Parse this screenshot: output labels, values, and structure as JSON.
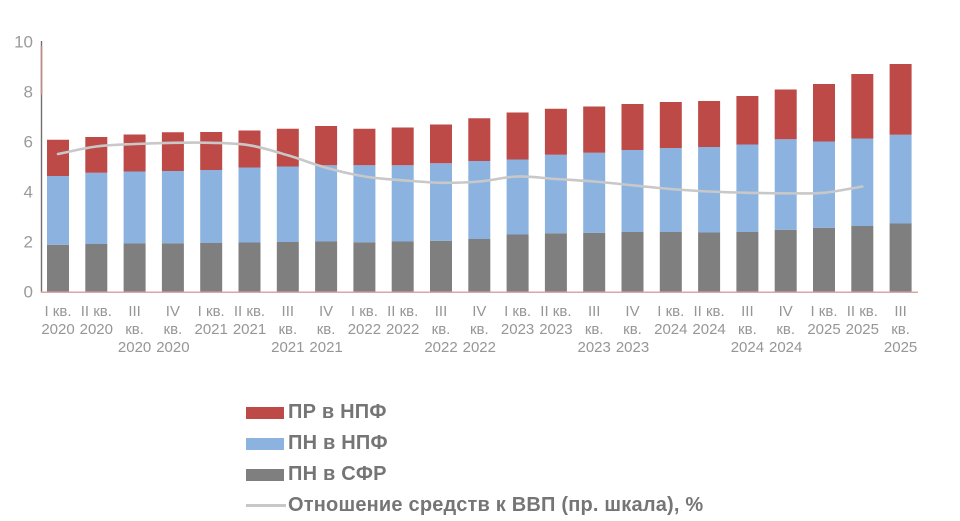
{
  "chart_data": {
    "type": "bar",
    "subtype": "stacked-bars-with-line",
    "title": "",
    "categories": [
      "I кв. 2020",
      "II кв. 2020",
      "III кв. 2020",
      "IV кв. 2020",
      "I кв. 2021",
      "II кв. 2021",
      "III кв. 2021",
      "IV кв. 2021",
      "I кв. 2022",
      "II кв. 2022",
      "III кв. 2022",
      "IV кв. 2022",
      "I кв. 2023",
      "II кв. 2023",
      "III кв. 2023",
      "IV кв. 2023",
      "I кв. 2024",
      "II кв. 2024",
      "III кв. 2024",
      "IV кв. 2024",
      "I кв. 2025",
      "II кв. 2025",
      "III кв. 2025"
    ],
    "category_lines": [
      [
        "I кв.",
        "2020"
      ],
      [
        "II кв.",
        "2020"
      ],
      [
        "III",
        "кв.",
        "2020"
      ],
      [
        "IV",
        "кв.",
        "2020"
      ],
      [
        "I кв.",
        "2021"
      ],
      [
        "II кв.",
        "2021"
      ],
      [
        "III",
        "кв.",
        "2021"
      ],
      [
        "IV",
        "кв.",
        "2021"
      ],
      [
        "I кв.",
        "2022"
      ],
      [
        "II кв.",
        "2022"
      ],
      [
        "III",
        "кв.",
        "2022"
      ],
      [
        "IV",
        "кв.",
        "2022"
      ],
      [
        "I кв.",
        "2023"
      ],
      [
        "II кв.",
        "2023"
      ],
      [
        "III",
        "кв.",
        "2023"
      ],
      [
        "IV",
        "кв.",
        "2023"
      ],
      [
        "I кв.",
        "2024"
      ],
      [
        "II кв.",
        "2024"
      ],
      [
        "III",
        "кв.",
        "2024"
      ],
      [
        "IV",
        "кв.",
        "2024"
      ],
      [
        "I кв.",
        "2025"
      ],
      [
        "II кв.",
        "2025"
      ],
      [
        "III",
        "кв.",
        "2025"
      ]
    ],
    "series": [
      {
        "name": "ПР в НПФ",
        "role": "bar-top",
        "color": "#bd4a47",
        "values": [
          1.45,
          1.43,
          1.48,
          1.55,
          1.52,
          1.48,
          1.51,
          1.57,
          1.46,
          1.51,
          1.55,
          1.71,
          1.88,
          1.84,
          1.85,
          1.84,
          1.84,
          1.84,
          1.94,
          1.99,
          2.3,
          2.58,
          2.83
        ]
      },
      {
        "name": "ПН в НПФ",
        "role": "bar-middle",
        "color": "#8cb3e0",
        "values": [
          2.75,
          2.85,
          2.88,
          2.89,
          2.92,
          3.0,
          3.02,
          3.05,
          3.08,
          3.05,
          3.1,
          3.12,
          3.0,
          3.14,
          3.2,
          3.28,
          3.36,
          3.42,
          3.5,
          3.62,
          3.45,
          3.5,
          3.55
        ]
      },
      {
        "name": "ПН в СФР",
        "role": "bar-bottom",
        "color": "#7f7f7f",
        "values": [
          1.87,
          1.9,
          1.92,
          1.93,
          1.94,
          1.96,
          1.98,
          2.0,
          1.97,
          2.0,
          2.03,
          2.1,
          2.28,
          2.33,
          2.35,
          2.38,
          2.38,
          2.36,
          2.38,
          2.47,
          2.55,
          2.62,
          2.72
        ]
      },
      {
        "name": "Отношение средств к ВВП (пр. шкала), %",
        "role": "line",
        "color": "#c8c8c8",
        "values": [
          5.5,
          5.8,
          5.9,
          5.95,
          5.95,
          5.85,
          5.45,
          4.95,
          4.6,
          4.45,
          4.35,
          4.4,
          4.6,
          4.5,
          4.4,
          4.25,
          4.1,
          4.0,
          3.95,
          3.93,
          3.95,
          4.2,
          null
        ]
      }
    ],
    "totals": [
      6.07,
      6.18,
      6.28,
      6.37,
      6.38,
      6.44,
      6.51,
      6.62,
      6.51,
      6.56,
      6.68,
      6.93,
      7.16,
      7.31,
      7.4,
      7.5,
      7.58,
      7.62,
      7.82,
      8.08,
      8.3,
      8.7,
      9.1
    ],
    "ylim": [
      0,
      10
    ],
    "yticks": [
      "0",
      "2",
      "4",
      "6",
      "8",
      "10"
    ],
    "grid": false,
    "legend_position": "bottom-left",
    "axis": {
      "y_axis_color": "#6f6f6f",
      "y_axis_accent_color": "#c08a88",
      "x_axis_color": "#d9a7a5",
      "tick_label_color": "#969696"
    }
  }
}
